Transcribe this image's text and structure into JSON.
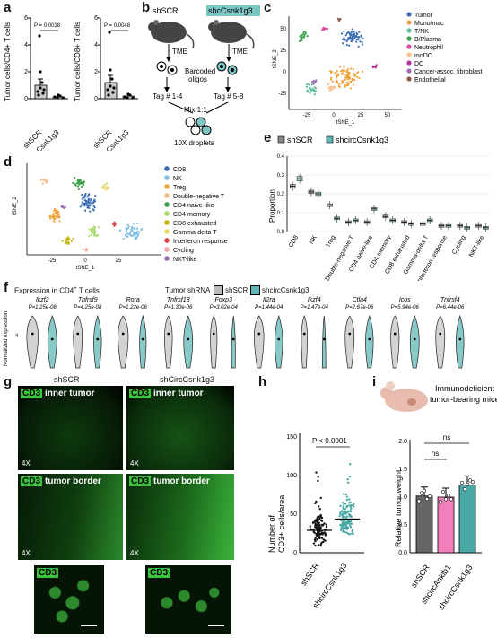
{
  "panels": {
    "a": "a",
    "b": "b",
    "c": "c",
    "d": "d",
    "e": "e",
    "f": "f",
    "g": "g",
    "h": "h",
    "i": "i"
  },
  "panel_a": {
    "left": {
      "ylabel": "Tumor cells/CD4+ T cells",
      "p": "P = 0.0018",
      "ticks": [
        "0",
        "2",
        "4",
        "6"
      ]
    },
    "right": {
      "ylabel": "Tumor cells/CD8+ T cells",
      "p": "P = 0.0048",
      "ticks": [
        "0",
        "2",
        "4",
        "6"
      ]
    },
    "groups": [
      "shSCR",
      "shcircCsnk1g3"
    ]
  },
  "panel_b": {
    "shscr": "shSCR",
    "shcirc": "shcCsnk1g3",
    "tme": "TME",
    "barcoded": "Barcoded\noligos",
    "tag1": "Tag # 1-4",
    "tag2": "Tag # 5-8",
    "mix": "Mix 1:1",
    "droplets": "10X droplets"
  },
  "panel_c": {
    "xlabel": "tSNE_1",
    "ylabel": "tSNE_2",
    "xticks": [
      "-25",
      "0",
      "25",
      "50"
    ],
    "yticks": [
      "-25",
      "0",
      "25",
      "50"
    ],
    "legend": [
      {
        "label": "Tumor",
        "color": "#3a6fb5"
      },
      {
        "label": "Mono/mac",
        "color": "#f0a33a"
      },
      {
        "label": "T/NK",
        "color": "#5dbd9c"
      },
      {
        "label": "B/Plasma",
        "color": "#3aa24a"
      },
      {
        "label": "Neutrophil",
        "color": "#d94b9c"
      },
      {
        "label": "moDC",
        "color": "#f6c08a"
      },
      {
        "label": "DC",
        "color": "#b0339a"
      },
      {
        "label": "Cancer-assoc. fibroblast",
        "color": "#9c6bb5"
      },
      {
        "label": "Endothelial",
        "color": "#8a5a44"
      }
    ]
  },
  "panel_d": {
    "xlabel": "tSNE_1",
    "ylabel": "tSNE_2",
    "xticks": [
      "-25",
      "0",
      "25"
    ],
    "legend": [
      {
        "label": "CD8",
        "color": "#3a6fb5"
      },
      {
        "label": "NK",
        "color": "#7ec0e8"
      },
      {
        "label": "Treg",
        "color": "#f0a33a"
      },
      {
        "label": "Double-negative T",
        "color": "#f6c08a"
      },
      {
        "label": "CD4 naive-like",
        "color": "#3aa24a"
      },
      {
        "label": "CD4 memory",
        "color": "#a6d96a"
      },
      {
        "label": "CD8 exhausted",
        "color": "#c8b400"
      },
      {
        "label": "Gamma-delta T",
        "color": "#e8d96a"
      },
      {
        "label": "Interferon response",
        "color": "#e04444"
      },
      {
        "label": "Cycling",
        "color": "#f4a6a6"
      },
      {
        "label": "NKT-like",
        "color": "#9c6bb5"
      }
    ]
  },
  "chart_data": {
    "type": "bar",
    "ylabel": "Proportion",
    "ylim": [
      0,
      0.4
    ],
    "yticks": [
      "0.0",
      "0.1",
      "0.2",
      "0.3",
      "0.4"
    ],
    "categories": [
      "CD8",
      "NK",
      "Treg",
      "Double-negative T",
      "CD4 naive-like",
      "CD4 memory",
      "CD8 exhausted",
      "Gamma-delta T",
      "Interferon response",
      "Cycling",
      "NKT-like"
    ],
    "series": [
      {
        "name": "shSCR",
        "color": "#888888",
        "values": [
          0.24,
          0.21,
          0.14,
          0.05,
          0.05,
          0.08,
          0.05,
          0.04,
          0.03,
          0.03,
          0.03
        ]
      },
      {
        "name": "shcircCsnk1g3",
        "color": "#5fb8b5",
        "values": [
          0.28,
          0.2,
          0.07,
          0.06,
          0.12,
          0.06,
          0.04,
          0.06,
          0.03,
          0.02,
          0.02
        ]
      }
    ]
  },
  "panel_f": {
    "title": "Expression in CD4",
    "title_sup": "+",
    "title_tail": " T cells",
    "shrna_label": "Tumor shRNA",
    "ylabel": "Normalized expression",
    "ytick": "4",
    "legend": [
      "shSCR",
      "shcircCsnk1g3"
    ],
    "genes": [
      {
        "name": "Ikzf2",
        "p": "P=1.25e-08"
      },
      {
        "name": "Tnfrsf9",
        "p": "P=4.25e-08"
      },
      {
        "name": "Rora",
        "p": "P=1.22e-06"
      },
      {
        "name": "Tnfrsf18",
        "p": "P=1.30e-06"
      },
      {
        "name": "Foxp3",
        "p": "P=3.02e-04"
      },
      {
        "name": "Il2ra",
        "p": "P=1.44e-04"
      },
      {
        "name": "Ikzf4",
        "p": "P=1.47e-04"
      },
      {
        "name": "Ctla4",
        "p": "P=2.67e-06"
      },
      {
        "name": "Icos",
        "p": "P=5.94e-06"
      },
      {
        "name": "Tnfrsf4",
        "p": "P=6.44e-06"
      }
    ]
  },
  "panel_g": {
    "col1": "shSCR",
    "col2": "shCircCsnk1g3",
    "cd3": "CD3",
    "inner": "inner tumor",
    "border": "tumor border",
    "mag": "4X"
  },
  "panel_h": {
    "ylabel": "Number of\nCD3+ cells/area",
    "p": "P < 0.0001",
    "ticks": [
      "0",
      "50",
      "100",
      "150"
    ],
    "groups": [
      "shSCR",
      "shcircCsnk1g3"
    ]
  },
  "panel_i": {
    "title": "Immunodeficient\ntumor-bearing mice",
    "ylabel": "Relative tumor weight",
    "ns": "ns",
    "ticks": [
      "0.0",
      "0.5",
      "1.0",
      "1.5",
      "2.0"
    ],
    "groups": [
      "shSCR",
      "shcircAnklb1",
      "shcircCsnk1g3"
    ],
    "values": [
      1.02,
      1.0,
      1.22
    ]
  }
}
